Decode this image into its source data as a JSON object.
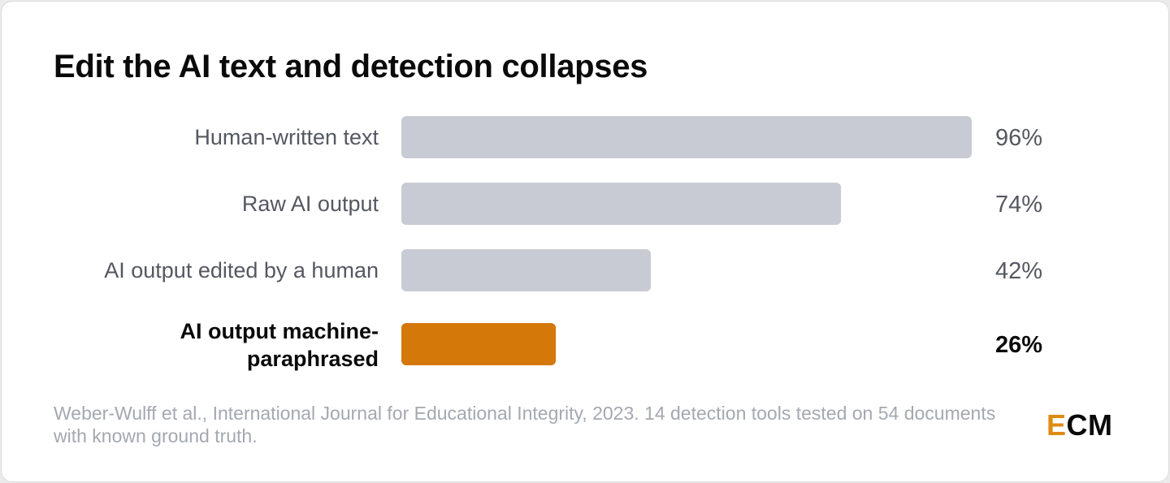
{
  "chart_data": {
    "type": "bar",
    "orientation": "horizontal",
    "title": "Edit the AI text and detection collapses",
    "categories": [
      "Human-written text",
      "Raw AI output",
      "AI output edited by a human",
      "AI output machine-paraphrased"
    ],
    "values": [
      96,
      74,
      42,
      26
    ],
    "value_labels": [
      "96%",
      "74%",
      "42%",
      "26%"
    ],
    "unit": "%",
    "xlim": [
      0,
      96
    ],
    "highlighted_category": "AI output machine-paraphrased",
    "grid": false,
    "legend": "none",
    "colors": {
      "bar": "#c8cbd3",
      "highlight": "#d4780a"
    }
  },
  "footer": {
    "source": "Weber-Wulff et al., International Journal for Educational Integrity, 2023. 14 detection tools tested on 54 documents with known ground truth."
  },
  "logo": {
    "accent_letter": "E",
    "rest": "CM",
    "accent_color": "#e08a14"
  }
}
